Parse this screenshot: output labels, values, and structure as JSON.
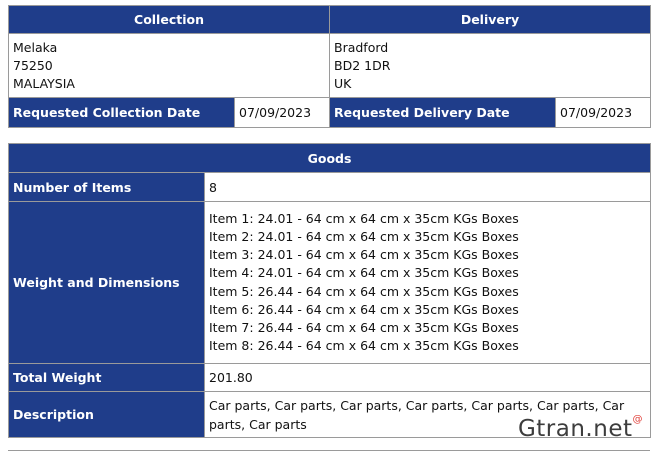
{
  "collection": {
    "header": "Collection",
    "address": [
      "Melaka",
      "75250",
      "MALAYSIA"
    ],
    "date_label": "Requested Collection Date",
    "date_value": "07/09/2023"
  },
  "delivery": {
    "header": "Delivery",
    "address": [
      "Bradford",
      "BD2 1DR",
      "UK"
    ],
    "date_label": "Requested Delivery Date",
    "date_value": "07/09/2023"
  },
  "goods": {
    "header": "Goods",
    "number_label": "Number of Items",
    "number_value": "8",
    "weight_dims_label": "Weight and Dimensions",
    "items": [
      "Item 1: 24.01 - 64 cm x 64 cm x 35cm KGs Boxes",
      "Item 2: 24.01 - 64 cm x 64 cm x 35cm KGs Boxes",
      "Item 3: 24.01 - 64 cm x 64 cm x 35cm KGs Boxes",
      "Item 4: 24.01 - 64 cm x 64 cm x 35cm KGs Boxes",
      "Item 5: 26.44 - 64 cm x 64 cm x 35cm KGs Boxes",
      "Item 6: 26.44 - 64 cm x 64 cm x 35cm KGs Boxes",
      "Item 7: 26.44 - 64 cm x 64 cm x 35cm KGs Boxes",
      "Item 8: 26.44 - 64 cm x 64 cm x 35cm KGs Boxes"
    ],
    "total_weight_label": "Total Weight",
    "total_weight_value": "201.80",
    "description_label": "Description",
    "description_value": "Car parts, Car parts, Car parts, Car parts, Car parts, Car parts, Car parts, Car parts"
  },
  "watermark": {
    "text": "Gtran.net",
    "mark": "@"
  },
  "colors": {
    "header_bg": "#1f3d8a",
    "header_text": "#ffffff",
    "border": "#9a9a9a"
  }
}
